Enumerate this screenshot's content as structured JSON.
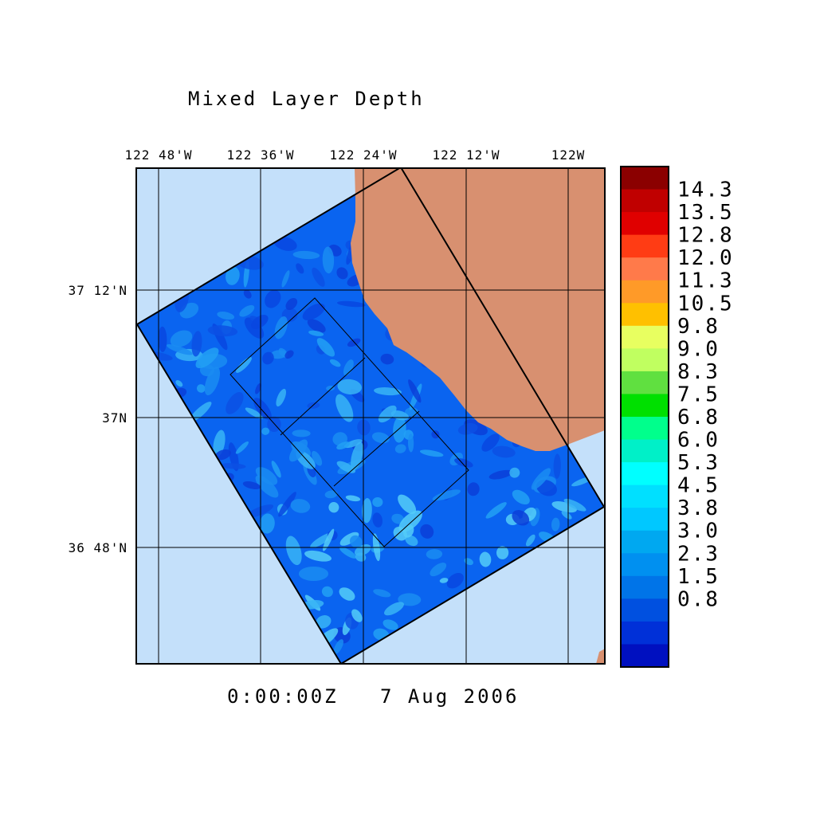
{
  "title": "Mixed Layer Depth",
  "timestamp": "0:00:00Z   7 Aug 2006",
  "longitude_labels": [
    "122 48'W",
    "122 36'W",
    "122 24'W",
    "122 12'W",
    "122W"
  ],
  "latitude_labels": [
    "37 12'N",
    "37N",
    "36 48'N"
  ],
  "colorbar": {
    "labels": [
      "14.3",
      "13.5",
      "12.8",
      "12.0",
      "11.3",
      "10.5",
      "9.8",
      "9.0",
      "8.3",
      "7.5",
      "6.8",
      "6.0",
      "5.3",
      "4.5",
      "3.8",
      "3.0",
      "2.3",
      "1.5",
      "0.8"
    ],
    "colors": [
      "#8b0000",
      "#c00000",
      "#e00000",
      "#ff3c14",
      "#ff7a4a",
      "#ff9a28",
      "#ffc000",
      "#e8ff60",
      "#c0ff60",
      "#60e040",
      "#00e000",
      "#00ff8c",
      "#00f0c8",
      "#00ffff",
      "#00e0ff",
      "#00c8ff",
      "#00a8f0",
      "#0090f0",
      "#0074e8",
      "#0050e0",
      "#0030d8",
      "#0010c0"
    ]
  },
  "chart_data": {
    "type": "heatmap",
    "title": "Mixed Layer Depth",
    "x_ticks": [
      "122 48'W",
      "122 36'W",
      "122 24'W",
      "122 12'W",
      "122W"
    ],
    "y_ticks": [
      "37 12'N",
      "37N",
      "36 48'N"
    ],
    "colorbar_levels": [
      0.8,
      1.5,
      2.3,
      3.0,
      3.8,
      4.5,
      5.3,
      6.0,
      6.8,
      7.5,
      8.3,
      9.0,
      9.8,
      10.5,
      11.3,
      12.0,
      12.8,
      13.5,
      14.3
    ],
    "time": "0:00:00Z   7 Aug 2006",
    "land_color": "#d89070",
    "ocean_outside_color": "#c4e0fa",
    "field_dominant_color": "#0a64f0"
  }
}
